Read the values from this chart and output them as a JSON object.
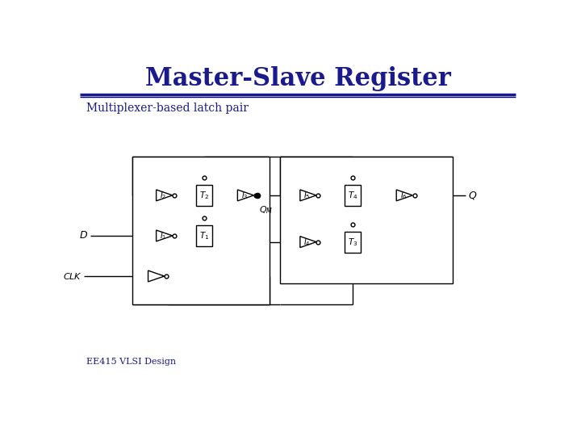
{
  "title": "Master-Slave Register",
  "subtitle": "Multiplexer-based latch pair",
  "footer": "EE415 VLSI Design",
  "title_color": "#1a1a8c",
  "subtitle_color": "#1a1a8c",
  "footer_color": "#1a1a8c",
  "bg_color": "#ffffff",
  "lc": "#000000",
  "sep_color1": "#1a1a8c",
  "sep_color2": "#000080",
  "title_fontsize": 22,
  "subtitle_fontsize": 10,
  "footer_fontsize": 8
}
